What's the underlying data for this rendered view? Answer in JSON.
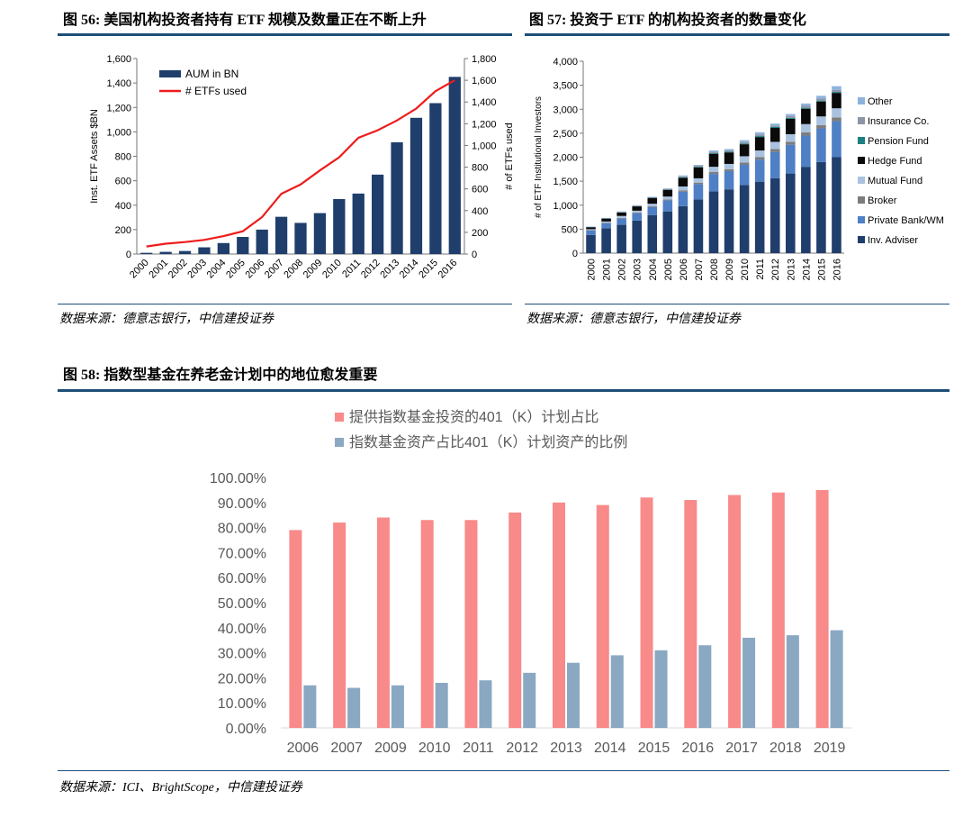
{
  "fig56": {
    "title": "图 56: 美国机构投资者持有 ETF 规模及数量正在不断上升",
    "source": "数据来源：德意志银行，中信建投证券"
  },
  "fig57": {
    "title": "图 57: 投资于 ETF 的机构投资者的数量变化",
    "source": "数据来源：德意志银行，中信建投证券"
  },
  "fig58": {
    "title": "图 58: 指数型基金在养老金计划中的地位愈发重要",
    "source": "数据来源：ICI、BrightScope，中信建投证券"
  },
  "colors": {
    "rule": "#1d4e78",
    "aum_bar": "#1f3e6b",
    "etf_line": "#ee1c1c",
    "pink": "#f88a8a",
    "bluegray": "#8aa8c2"
  },
  "chart_data": [
    {
      "id": "fig56",
      "type": "bar",
      "categories": [
        "2000",
        "2001",
        "2002",
        "2003",
        "2004",
        "2005",
        "2006",
        "2007",
        "2008",
        "2009",
        "2010",
        "2011",
        "2012",
        "2013",
        "2014",
        "2015",
        "2016"
      ],
      "series": [
        {
          "name": "AUM in BN",
          "kind": "bar",
          "axis": "left",
          "color": "#1f3e6b",
          "values": [
            10,
            18,
            25,
            55,
            90,
            140,
            200,
            305,
            255,
            335,
            450,
            495,
            650,
            915,
            1115,
            1235,
            1450
          ]
        },
        {
          "name": "# ETFs used",
          "kind": "line",
          "axis": "right",
          "color": "#ee1c1c",
          "values": [
            70,
            95,
            110,
            130,
            165,
            210,
            340,
            555,
            640,
            770,
            890,
            1070,
            1140,
            1230,
            1340,
            1500,
            1600
          ]
        }
      ],
      "ylabel": "Inst. ETF Assets $BN",
      "y2label": "# of ETFs used",
      "ylim": [
        0,
        1600
      ],
      "y2lim": [
        0,
        1800
      ],
      "yticks": [
        "0",
        "200",
        "400",
        "600",
        "800",
        "1,000",
        "1,200",
        "1,400",
        "1,600"
      ],
      "y2ticks": [
        "0",
        "200",
        "400",
        "600",
        "800",
        "1,000",
        "1,200",
        "1,400",
        "1,600",
        "1,800"
      ],
      "legend": "top-left"
    },
    {
      "id": "fig57",
      "type": "bar",
      "stacked": true,
      "categories": [
        "2000",
        "2001",
        "2002",
        "2003",
        "2004",
        "2005",
        "2006",
        "2007",
        "2008",
        "2009",
        "2010",
        "2011",
        "2012",
        "2013",
        "2014",
        "2015",
        "2016"
      ],
      "series": [
        {
          "name": "Inv. Adviser",
          "color": "#1f3e6b",
          "values": [
            380,
            520,
            590,
            680,
            790,
            870,
            980,
            1120,
            1290,
            1330,
            1420,
            1490,
            1560,
            1660,
            1800,
            1900,
            2000
          ]
        },
        {
          "name": "Private Bank/WM",
          "color": "#4f7fc4",
          "values": [
            90,
            100,
            130,
            150,
            170,
            230,
            300,
            320,
            360,
            380,
            420,
            460,
            550,
            600,
            650,
            700,
            750
          ]
        },
        {
          "name": "Broker",
          "color": "#7d7d7d",
          "values": [
            10,
            10,
            15,
            15,
            20,
            20,
            30,
            30,
            40,
            40,
            50,
            50,
            60,
            60,
            70,
            70,
            80
          ]
        },
        {
          "name": "Mutual Fund",
          "color": "#a9c2e0",
          "values": [
            20,
            30,
            40,
            40,
            50,
            60,
            80,
            90,
            110,
            110,
            130,
            140,
            150,
            160,
            170,
            180,
            190
          ]
        },
        {
          "name": "Hedge Fund",
          "color": "#0a0a0a",
          "values": [
            40,
            60,
            70,
            90,
            120,
            140,
            180,
            230,
            270,
            240,
            250,
            280,
            290,
            320,
            320,
            310,
            320
          ]
        },
        {
          "name": "Pension Fund",
          "color": "#1a7f80",
          "values": [
            5,
            5,
            5,
            5,
            5,
            5,
            10,
            10,
            15,
            15,
            15,
            20,
            20,
            20,
            20,
            20,
            20
          ]
        },
        {
          "name": "Insurance Co.",
          "color": "#8d95a6",
          "values": [
            5,
            5,
            10,
            10,
            10,
            15,
            20,
            20,
            25,
            25,
            30,
            30,
            30,
            40,
            40,
            40,
            40
          ]
        },
        {
          "name": "Other",
          "color": "#8db3dd",
          "values": [
            5,
            5,
            10,
            10,
            10,
            10,
            20,
            20,
            30,
            30,
            40,
            50,
            40,
            40,
            50,
            60,
            80
          ]
        }
      ],
      "ylabel": "# of ETF Institutional Investors",
      "ylim": [
        0,
        4000
      ],
      "yticks": [
        "0",
        "500",
        "1,000",
        "1,500",
        "2,000",
        "2,500",
        "3,000",
        "3,500",
        "4,000"
      ],
      "legend": "right"
    },
    {
      "id": "fig58",
      "type": "bar",
      "categories": [
        "2006",
        "2007",
        "2009",
        "2010",
        "2011",
        "2012",
        "2013",
        "2014",
        "2015",
        "2016",
        "2017",
        "2018",
        "2019"
      ],
      "series": [
        {
          "name": "提供指数基金投资的401（K）计划占比",
          "color": "#f88a8a",
          "values": [
            79,
            82,
            84,
            83,
            83,
            86,
            90,
            89,
            92,
            91,
            93,
            94,
            95
          ]
        },
        {
          "name": "指数基金资产占比401（K）计划资产的比例",
          "color": "#8aa8c2",
          "values": [
            17,
            16,
            17,
            18,
            19,
            22,
            26,
            29,
            31,
            33,
            36,
            37,
            39
          ]
        }
      ],
      "ylim": [
        0,
        100
      ],
      "yticks": [
        "0.00%",
        "10.00%",
        "20.00%",
        "30.00%",
        "40.00%",
        "50.00%",
        "60.00%",
        "70.00%",
        "80.00%",
        "90.00%",
        "100.00%"
      ],
      "legend": "top"
    }
  ]
}
